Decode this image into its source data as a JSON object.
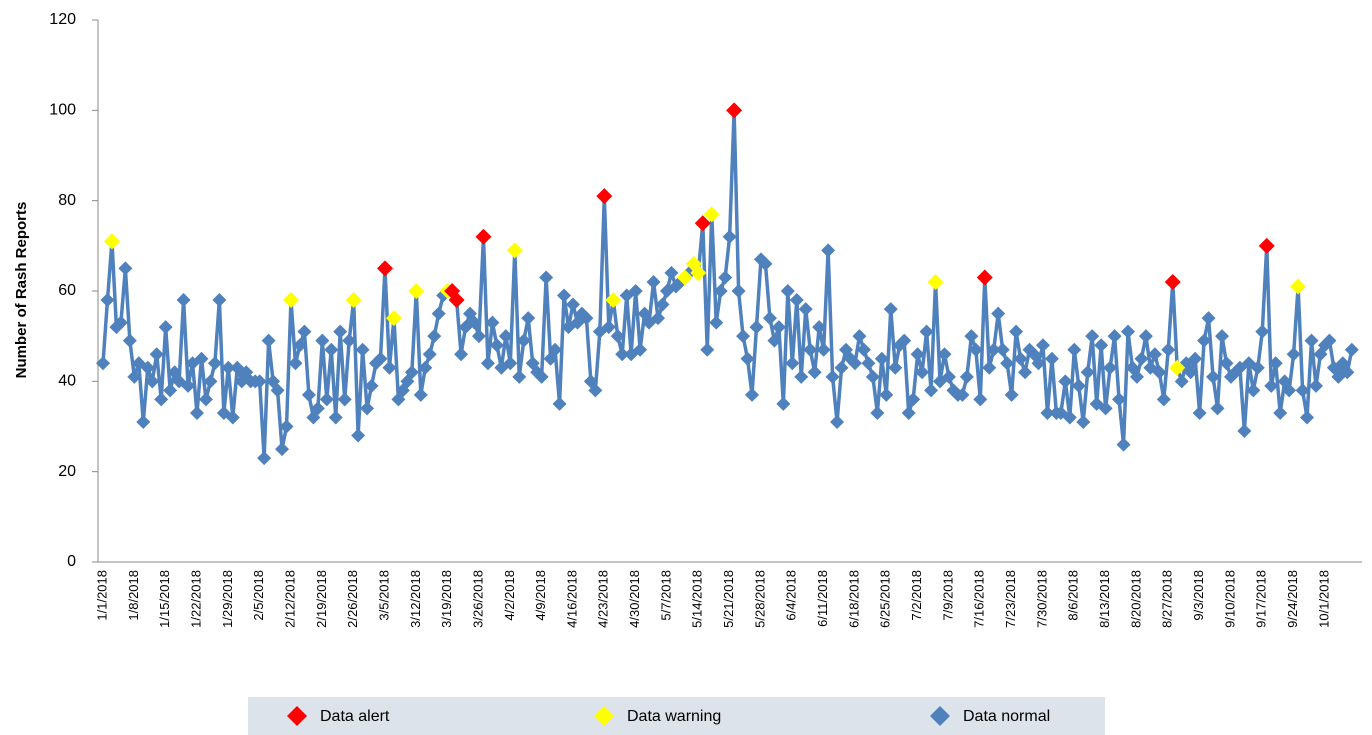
{
  "chart_data": {
    "type": "line",
    "y_label": "Number of Rash Reports",
    "categories": [
      "1/1/2018",
      null,
      null,
      null,
      null,
      null,
      null,
      "1/8/2018",
      null,
      null,
      null,
      null,
      null,
      null,
      "1/15/2018",
      null,
      null,
      null,
      null,
      null,
      null,
      "1/22/2018",
      null,
      null,
      null,
      null,
      null,
      null,
      "1/29/2018",
      null,
      null,
      null,
      null,
      null,
      null,
      "2/5/2018",
      null,
      null,
      null,
      null,
      null,
      null,
      "2/12/2018",
      null,
      null,
      null,
      null,
      null,
      null,
      "2/19/2018",
      null,
      null,
      null,
      null,
      null,
      null,
      "2/26/2018",
      null,
      null,
      null,
      null,
      null,
      null,
      "3/5/2018",
      null,
      null,
      null,
      null,
      null,
      null,
      "3/12/2018",
      null,
      null,
      null,
      null,
      null,
      null,
      "3/19/2018",
      null,
      null,
      null,
      null,
      null,
      null,
      "3/26/2018",
      null,
      null,
      null,
      null,
      null,
      null,
      "4/2/2018",
      null,
      null,
      null,
      null,
      null,
      null,
      "4/9/2018",
      null,
      null,
      null,
      null,
      null,
      null,
      "4/16/2018",
      null,
      null,
      null,
      null,
      null,
      null,
      "4/23/2018",
      null,
      null,
      null,
      null,
      null,
      null,
      "4/30/2018",
      null,
      null,
      null,
      null,
      null,
      null,
      "5/7/2018",
      null,
      null,
      null,
      null,
      null,
      null,
      "5/14/2018",
      null,
      null,
      null,
      null,
      null,
      null,
      "5/21/2018",
      null,
      null,
      null,
      null,
      null,
      null,
      "5/28/2018",
      null,
      null,
      null,
      null,
      null,
      null,
      "6/4/2018",
      null,
      null,
      null,
      null,
      null,
      null,
      "6/11/2018",
      null,
      null,
      null,
      null,
      null,
      null,
      "6/18/2018",
      null,
      null,
      null,
      null,
      null,
      null,
      "6/25/2018",
      null,
      null,
      null,
      null,
      null,
      null,
      "7/2/2018",
      null,
      null,
      null,
      null,
      null,
      null,
      "7/9/2018",
      null,
      null,
      null,
      null,
      null,
      null,
      "7/16/2018",
      null,
      null,
      null,
      null,
      null,
      null,
      "7/23/2018",
      null,
      null,
      null,
      null,
      null,
      null,
      "7/30/2018",
      null,
      null,
      null,
      null,
      null,
      null,
      "8/6/2018",
      null,
      null,
      null,
      null,
      null,
      null,
      "8/13/2018",
      null,
      null,
      null,
      null,
      null,
      null,
      "8/20/2018",
      null,
      null,
      null,
      null,
      null,
      null,
      "8/27/2018",
      null,
      null,
      null,
      null,
      null,
      null,
      "9/3/2018",
      null,
      null,
      null,
      null,
      null,
      null,
      "9/10/2018",
      null,
      null,
      null,
      null,
      null,
      null,
      "9/17/2018",
      null,
      null,
      null,
      null,
      null,
      null,
      "9/24/2018",
      null,
      null,
      null,
      null,
      null,
      null,
      "10/1/2018",
      null,
      null,
      null,
      null,
      null,
      null
    ],
    "series": [
      {
        "name": "Data alert",
        "color": "#ff0000",
        "values": [
          null,
          null,
          null,
          null,
          null,
          null,
          null,
          null,
          null,
          null,
          null,
          null,
          null,
          null,
          null,
          null,
          null,
          null,
          null,
          null,
          null,
          null,
          null,
          null,
          null,
          null,
          null,
          null,
          null,
          null,
          null,
          null,
          null,
          null,
          null,
          null,
          null,
          null,
          null,
          null,
          null,
          null,
          null,
          null,
          null,
          null,
          null,
          null,
          null,
          null,
          null,
          null,
          null,
          null,
          null,
          null,
          null,
          null,
          null,
          null,
          null,
          null,
          null,
          65,
          null,
          null,
          null,
          null,
          null,
          null,
          null,
          null,
          null,
          null,
          null,
          null,
          null,
          null,
          60,
          58,
          null,
          null,
          null,
          null,
          null,
          72,
          null,
          null,
          null,
          null,
          null,
          null,
          null,
          null,
          null,
          null,
          null,
          null,
          null,
          null,
          null,
          null,
          null,
          null,
          null,
          null,
          null,
          null,
          null,
          null,
          null,
          null,
          81,
          null,
          null,
          null,
          null,
          null,
          null,
          null,
          null,
          null,
          null,
          null,
          null,
          null,
          null,
          null,
          null,
          null,
          null,
          null,
          null,
          null,
          75,
          null,
          null,
          null,
          null,
          null,
          null,
          100,
          null,
          null,
          null,
          null,
          null,
          null,
          null,
          null,
          null,
          null,
          null,
          null,
          null,
          null,
          null,
          null,
          null,
          null,
          null,
          null,
          null,
          null,
          null,
          null,
          null,
          null,
          null,
          null,
          null,
          null,
          null,
          null,
          null,
          null,
          null,
          null,
          null,
          null,
          null,
          null,
          null,
          null,
          null,
          null,
          null,
          null,
          null,
          null,
          null,
          null,
          null,
          null,
          null,
          null,
          null,
          63,
          null,
          null,
          null,
          null,
          null,
          null,
          null,
          null,
          null,
          null,
          null,
          null,
          null,
          null,
          null,
          null,
          null,
          null,
          null,
          null,
          null,
          null,
          null,
          null,
          null,
          null,
          null,
          null,
          null,
          null,
          null,
          null,
          null,
          null,
          null,
          null,
          null,
          null,
          null,
          null,
          null,
          62,
          null,
          null,
          null,
          null,
          null,
          null,
          null,
          null,
          null,
          null,
          null,
          null,
          null,
          null,
          null,
          null,
          null,
          null,
          null,
          null,
          70,
          null,
          null,
          null,
          null,
          null,
          null,
          null,
          null,
          null,
          null,
          null,
          null,
          null,
          null,
          null,
          null,
          null,
          null,
          null
        ]
      },
      {
        "name": "Data warning",
        "color": "#ffff00",
        "values": [
          null,
          null,
          71,
          null,
          null,
          null,
          null,
          null,
          null,
          null,
          null,
          null,
          null,
          null,
          null,
          null,
          null,
          null,
          null,
          null,
          null,
          null,
          null,
          null,
          null,
          null,
          null,
          null,
          null,
          null,
          null,
          null,
          null,
          null,
          null,
          null,
          null,
          null,
          null,
          null,
          null,
          null,
          58,
          null,
          null,
          null,
          null,
          null,
          null,
          null,
          null,
          null,
          null,
          null,
          null,
          null,
          58,
          null,
          null,
          null,
          null,
          null,
          null,
          null,
          null,
          54,
          null,
          null,
          null,
          null,
          60,
          null,
          null,
          null,
          null,
          null,
          null,
          60,
          null,
          null,
          null,
          null,
          null,
          null,
          null,
          null,
          null,
          null,
          null,
          null,
          null,
          null,
          69,
          null,
          null,
          null,
          null,
          null,
          null,
          null,
          null,
          null,
          null,
          null,
          null,
          null,
          null,
          null,
          null,
          null,
          null,
          null,
          null,
          null,
          58,
          null,
          null,
          null,
          null,
          null,
          null,
          null,
          null,
          null,
          null,
          null,
          null,
          null,
          null,
          null,
          63,
          null,
          66,
          64,
          null,
          null,
          77,
          null,
          null,
          null,
          null,
          null,
          null,
          null,
          null,
          null,
          null,
          null,
          null,
          null,
          null,
          null,
          null,
          null,
          null,
          null,
          null,
          null,
          null,
          null,
          null,
          null,
          null,
          null,
          null,
          null,
          null,
          null,
          null,
          null,
          null,
          null,
          null,
          null,
          null,
          null,
          null,
          null,
          null,
          null,
          null,
          null,
          null,
          null,
          null,
          null,
          62,
          null,
          null,
          null,
          null,
          null,
          null,
          null,
          null,
          null,
          null,
          null,
          null,
          null,
          null,
          null,
          null,
          null,
          null,
          null,
          null,
          null,
          null,
          null,
          null,
          null,
          null,
          null,
          null,
          null,
          null,
          null,
          null,
          null,
          null,
          null,
          null,
          null,
          null,
          null,
          null,
          null,
          null,
          null,
          null,
          null,
          null,
          null,
          null,
          null,
          null,
          null,
          null,
          null,
          43,
          null,
          null,
          null,
          null,
          null,
          null,
          null,
          null,
          null,
          null,
          null,
          null,
          null,
          null,
          null,
          null,
          null,
          null,
          null,
          null,
          null,
          null,
          null,
          null,
          null,
          null,
          61,
          null,
          null,
          null,
          null,
          null,
          null,
          null,
          null,
          null,
          null,
          null,
          null
        ]
      },
      {
        "name": "Data normal",
        "color": "#4f81bd",
        "values": [
          44,
          58,
          71,
          52,
          53,
          65,
          49,
          41,
          44,
          31,
          43,
          40,
          46,
          36,
          52,
          38,
          42,
          40,
          58,
          39,
          44,
          33,
          45,
          36,
          40,
          44,
          58,
          33,
          43,
          32,
          43,
          40,
          42,
          40,
          40,
          40,
          23,
          49,
          40,
          38,
          25,
          30,
          58,
          44,
          48,
          51,
          37,
          32,
          34,
          49,
          36,
          47,
          32,
          51,
          36,
          49,
          58,
          28,
          47,
          34,
          39,
          44,
          45,
          65,
          43,
          54,
          36,
          38,
          40,
          42,
          60,
          37,
          43,
          46,
          50,
          55,
          59,
          60,
          60,
          58,
          46,
          52,
          55,
          53,
          50,
          72,
          44,
          53,
          48,
          43,
          50,
          44,
          69,
          41,
          49,
          54,
          44,
          42,
          41,
          63,
          45,
          47,
          35,
          59,
          52,
          57,
          53,
          55,
          54,
          40,
          38,
          51,
          81,
          52,
          58,
          50,
          46,
          59,
          46,
          60,
          47,
          55,
          53,
          62,
          54,
          57,
          60,
          64,
          61,
          62,
          63,
          64,
          66,
          64,
          75,
          47,
          77,
          53,
          60,
          63,
          72,
          100,
          60,
          50,
          45,
          37,
          52,
          67,
          66,
          54,
          49,
          52,
          35,
          60,
          44,
          58,
          41,
          56,
          47,
          42,
          52,
          47,
          69,
          41,
          31,
          43,
          47,
          45,
          44,
          50,
          47,
          44,
          41,
          33,
          45,
          37,
          56,
          43,
          48,
          49,
          33,
          36,
          46,
          42,
          51,
          38,
          62,
          40,
          46,
          41,
          38,
          37,
          37,
          41,
          50,
          47,
          36,
          63,
          43,
          47,
          55,
          47,
          44,
          37,
          51,
          45,
          42,
          47,
          46,
          44,
          48,
          33,
          45,
          33,
          33,
          40,
          32,
          47,
          39,
          31,
          42,
          50,
          35,
          48,
          34,
          43,
          50,
          36,
          26,
          51,
          43,
          41,
          45,
          50,
          43,
          46,
          42,
          36,
          47,
          62,
          43,
          40,
          44,
          42,
          45,
          33,
          49,
          54,
          41,
          34,
          50,
          44,
          41,
          42,
          43,
          29,
          44,
          38,
          43,
          51,
          70,
          39,
          44,
          33,
          40,
          38,
          46,
          61,
          38,
          32,
          49,
          39,
          46,
          48,
          49,
          43,
          41,
          44,
          42,
          47
        ]
      }
    ],
    "ylim": [
      0,
      120
    ],
    "yticks": [
      0,
      20,
      40,
      60,
      80,
      100,
      120
    ],
    "grid": false
  }
}
